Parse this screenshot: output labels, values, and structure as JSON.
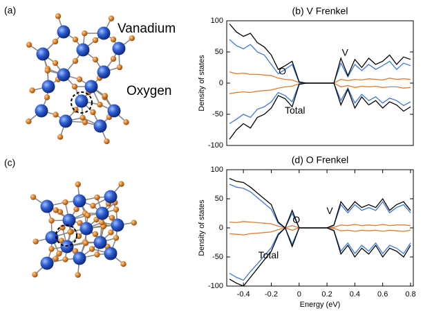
{
  "structures": [
    {
      "label": "(a)",
      "species": [
        {
          "name": "Vanadium",
          "color": "#3a78d8"
        },
        {
          "name": "Oxygen",
          "color": "#e07b2a"
        }
      ]
    },
    {
      "label": "(c)"
    }
  ],
  "chart_data": [
    {
      "type": "line",
      "title": "(b) V Frenkel",
      "y_label": "Density of states",
      "x": [
        -0.5,
        -0.45,
        -0.4,
        -0.35,
        -0.3,
        -0.25,
        -0.2,
        -0.15,
        -0.1,
        -0.05,
        0,
        0.05,
        0.1,
        0.15,
        0.2,
        0.25,
        0.3,
        0.35,
        0.4,
        0.45,
        0.5,
        0.55,
        0.6,
        0.65,
        0.7,
        0.75,
        0.8
      ],
      "xlim": [
        -0.52,
        0.82
      ],
      "ylim": [
        -100,
        100
      ],
      "yticks": [
        -100,
        -50,
        0,
        50,
        100
      ],
      "series": [
        {
          "name": "Total",
          "color": "#000000",
          "values": [
            95,
            82,
            75,
            80,
            65,
            58,
            45,
            22,
            28,
            35,
            2,
            0,
            0,
            0,
            0,
            0,
            40,
            12,
            38,
            25,
            40,
            30,
            35,
            45,
            30,
            42,
            38
          ],
          "values_down": [
            -90,
            -75,
            -65,
            -72,
            -55,
            -50,
            -40,
            -20,
            -25,
            -38,
            -2,
            0,
            0,
            0,
            0,
            0,
            -35,
            -10,
            -40,
            -22,
            -35,
            -28,
            -40,
            -30,
            -35,
            -45,
            -38
          ]
        },
        {
          "name": "V",
          "color": "#3a78d8",
          "values": [
            70,
            60,
            55,
            62,
            50,
            45,
            30,
            15,
            22,
            30,
            1,
            0,
            0,
            0,
            0,
            0,
            32,
            10,
            30,
            20,
            30,
            22,
            28,
            35,
            22,
            32,
            28
          ],
          "values_down": [
            -65,
            -58,
            -50,
            -55,
            -42,
            -38,
            -30,
            -15,
            -20,
            -30,
            -1,
            0,
            0,
            0,
            0,
            0,
            -28,
            -8,
            -32,
            -18,
            -28,
            -22,
            -32,
            -24,
            -28,
            -36,
            -30
          ]
        },
        {
          "name": "O",
          "color": "#e07b2a",
          "values": [
            18,
            15,
            16,
            14,
            14,
            13,
            12,
            8,
            6,
            5,
            1,
            0,
            0,
            0,
            0,
            0,
            6,
            4,
            6,
            5,
            7,
            6,
            5,
            8,
            6,
            7,
            6
          ],
          "values_down": [
            -17,
            -15,
            -14,
            -15,
            -13,
            -12,
            -11,
            -8,
            -6,
            -5,
            -1,
            0,
            0,
            0,
            0,
            0,
            -6,
            -4,
            -7,
            -5,
            -6,
            -5,
            -7,
            -6,
            -6,
            -8,
            -7
          ]
        }
      ]
    },
    {
      "type": "line",
      "title": "(d) O Frenkel",
      "y_label": "Density of states",
      "x_label": "Energy (eV)",
      "x": [
        -0.5,
        -0.45,
        -0.4,
        -0.35,
        -0.3,
        -0.25,
        -0.2,
        -0.15,
        -0.1,
        -0.05,
        0,
        0.05,
        0.1,
        0.15,
        0.2,
        0.25,
        0.3,
        0.35,
        0.4,
        0.45,
        0.5,
        0.55,
        0.6,
        0.65,
        0.7,
        0.75,
        0.8
      ],
      "xlim": [
        -0.52,
        0.82
      ],
      "ylim": [
        -100,
        100
      ],
      "yticks": [
        -100,
        -50,
        0,
        50,
        100
      ],
      "xticks": [
        -0.4,
        -0.2,
        0,
        0.2,
        0.4,
        0.6,
        0.8
      ],
      "series": [
        {
          "name": "Total",
          "color": "#000000",
          "values": [
            85,
            80,
            78,
            70,
            60,
            50,
            40,
            10,
            0,
            30,
            0,
            0,
            0,
            0,
            0,
            5,
            45,
            30,
            45,
            35,
            40,
            35,
            50,
            30,
            40,
            45,
            30
          ],
          "values_down": [
            -88,
            -95,
            -100,
            -85,
            -70,
            -55,
            -40,
            -12,
            0,
            -32,
            0,
            0,
            0,
            0,
            0,
            -5,
            -45,
            -30,
            -50,
            -35,
            -45,
            -30,
            -50,
            -35,
            -40,
            -50,
            -30
          ]
        },
        {
          "name": "V",
          "color": "#3a78d8",
          "values": [
            75,
            70,
            68,
            62,
            52,
            42,
            32,
            8,
            0,
            25,
            0,
            0,
            0,
            0,
            0,
            4,
            40,
            26,
            40,
            30,
            35,
            30,
            45,
            26,
            35,
            40,
            26
          ],
          "values_down": [
            -78,
            -85,
            -90,
            -75,
            -62,
            -48,
            -34,
            -10,
            0,
            -28,
            0,
            0,
            0,
            0,
            0,
            -4,
            -40,
            -26,
            -44,
            -30,
            -40,
            -26,
            -44,
            -30,
            -35,
            -44,
            -26
          ]
        },
        {
          "name": "O",
          "color": "#e07b2a",
          "values": [
            10,
            9,
            11,
            10,
            9,
            8,
            7,
            3,
            0,
            4,
            0,
            0,
            0,
            0,
            0,
            1,
            5,
            4,
            6,
            4,
            5,
            4,
            6,
            4,
            5,
            5,
            4
          ],
          "values_down": [
            -10,
            -11,
            -12,
            -10,
            -9,
            -8,
            -7,
            -3,
            0,
            -4,
            0,
            0,
            0,
            0,
            0,
            -1,
            -5,
            -4,
            -6,
            -4,
            -5,
            -4,
            -6,
            -4,
            -5,
            -6,
            -4
          ]
        }
      ]
    }
  ]
}
